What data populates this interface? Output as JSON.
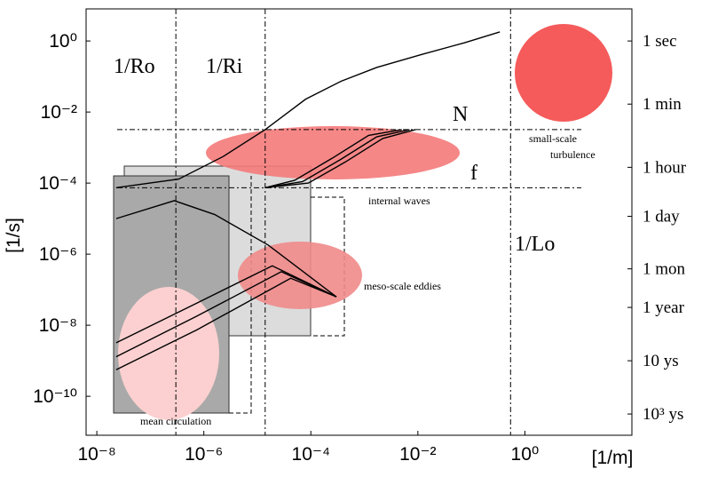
{
  "chart_data": {
    "type": "line",
    "xscale": "log",
    "yscale": "log",
    "xlim": [
      6.3e-09,
      100
    ],
    "ylim": [
      8e-12,
      8
    ],
    "y2lim": [
      8e-12,
      8
    ],
    "xticks": [
      {
        "value": 1e-08,
        "label": "10⁻⁸"
      },
      {
        "value": 1e-06,
        "label": "10⁻⁶"
      },
      {
        "value": 0.0001,
        "label": "10⁻⁴"
      },
      {
        "value": 0.01,
        "label": "10⁻²"
      },
      {
        "value": 1,
        "label": "10⁰"
      }
    ],
    "yticks": [
      {
        "value": 1,
        "label": "10⁰"
      },
      {
        "value": 0.01,
        "label": "10⁻²"
      },
      {
        "value": 0.0001,
        "label": "10⁻⁴"
      },
      {
        "value": 1e-06,
        "label": "10⁻⁶"
      },
      {
        "value": 1e-08,
        "label": "10⁻⁸"
      },
      {
        "value": 1e-10,
        "label": "10⁻¹⁰"
      }
    ],
    "y2ticks": [
      {
        "value": 1,
        "label": "1 sec"
      },
      {
        "value": 0.0167,
        "label": "1 min"
      },
      {
        "value": 0.000278,
        "label": "1 hour"
      },
      {
        "value": 1.16e-05,
        "label": "1 day"
      },
      {
        "value": 3.86e-07,
        "label": "1 mon"
      },
      {
        "value": 3.17e-08,
        "label": "1 year"
      },
      {
        "value": 1e-09,
        "label": "10 ys"
      },
      {
        "value": 3.17e-11,
        "label": "10³ ys"
      }
    ],
    "xlabel": "[1/m]",
    "ylabel": "[1/s]",
    "series": [
      {
        "color": "#000000",
        "x": [
          2.3e-08,
          3.4e-07,
          2.3e-06,
          1.4e-05,
          8e-05,
          0.00037,
          0.0017,
          0.012,
          0.074,
          0.34
        ],
        "values": [
          7.4e-05,
          0.00013,
          0.00056,
          0.0032,
          0.023,
          0.074,
          0.18,
          0.42,
          0.89,
          1.8
        ]
      },
      {
        "color": "#000000",
        "x": [
          1.4e-05,
          5e-05,
          0.00025,
          0.0012,
          0.005
        ],
        "values": [
          7.4e-05,
          0.00012,
          0.0005,
          0.0022,
          0.0032
        ]
      },
      {
        "color": "#000000",
        "x": [
          1.4e-05,
          7e-05,
          0.00035,
          0.0017,
          0.007
        ],
        "values": [
          7.4e-05,
          0.00011,
          0.00045,
          0.002,
          0.0032
        ]
      },
      {
        "color": "#000000",
        "x": [
          1.4e-05,
          9e-05,
          0.00045,
          0.0022,
          0.009
        ],
        "values": [
          7.4e-05,
          0.0001,
          0.0004,
          0.0018,
          0.0032
        ]
      },
      {
        "color": "#000000",
        "x": [
          2.3e-08,
          2.8e-07,
          1.6e-06,
          1.6e-05,
          0.0003
        ],
        "values": [
          1e-05,
          3.2e-05,
          1.3e-05,
          1.8e-06,
          6.3e-08
        ]
      },
      {
        "color": "#000000",
        "x": [
          2.3e-08,
          7.4e-07,
          1.9e-05,
          0.0003
        ],
        "values": [
          3.2e-09,
          4.2e-08,
          4.7e-07,
          6.3e-08
        ]
      },
      {
        "color": "#000000",
        "x": [
          2.3e-08,
          7.4e-07,
          2.8e-05,
          0.0003
        ],
        "values": [
          1.3e-09,
          1.8e-08,
          3.2e-07,
          6.3e-08
        ]
      },
      {
        "color": "#000000",
        "x": [
          2.3e-08,
          7.4e-07,
          4.2e-05,
          0.0003
        ],
        "values": [
          5.6e-10,
          7.4e-09,
          2.1e-07,
          6.3e-08
        ]
      }
    ],
    "vlines": [
      {
        "x": 3e-07,
        "label": "1/Ro"
      },
      {
        "x": 1.4e-05,
        "label": "1/Ri"
      },
      {
        "x": 0.54,
        "label": "1/Lo"
      }
    ],
    "hlines": [
      {
        "y": 0.0032,
        "label": "N"
      },
      {
        "y": 7.4e-05,
        "label": "f"
      }
    ],
    "annotations": [
      "small-scale",
      "turbulence",
      "internal waves",
      "meso-scale eddies",
      "mean circulation"
    ]
  }
}
